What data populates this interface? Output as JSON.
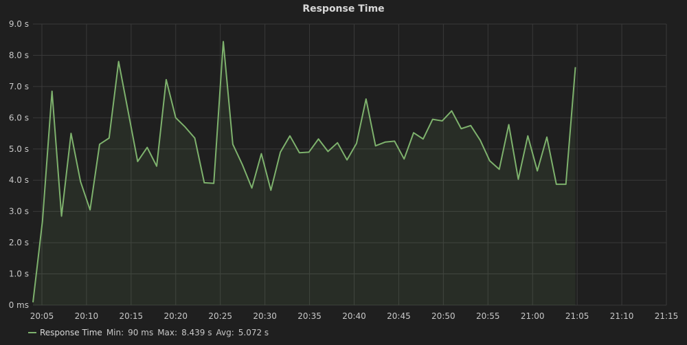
{
  "panel": {
    "title": "Response Time"
  },
  "legend": {
    "name": "Response Time",
    "min_label": "Min:",
    "min_value": "90 ms",
    "max_label": "Max:",
    "max_value": "8.439 s",
    "avg_label": "Avg:",
    "avg_value": "5.072 s"
  },
  "colors": {
    "background": "#1f1f1f",
    "grid": "#3a3a3a",
    "line": "#7eb26d",
    "fill": "#7eb26d",
    "text": "#c8c8c8"
  },
  "chart_data": {
    "type": "area",
    "title": "Response Time",
    "xlabel": "",
    "ylabel": "",
    "x_ticks": [
      "20:05",
      "20:10",
      "20:15",
      "20:20",
      "20:25",
      "20:30",
      "20:35",
      "20:40",
      "20:45",
      "20:50",
      "20:55",
      "21:00",
      "21:05",
      "21:10",
      "21:15"
    ],
    "y_ticks": [
      "0 ms",
      "1.0 s",
      "2.0 s",
      "3.0 s",
      "4.0 s",
      "5.0 s",
      "6.0 s",
      "7.0 s",
      "8.0 s",
      "9.0 s"
    ],
    "ylim": [
      0,
      9
    ],
    "xlim": [
      "20:04:00",
      "21:15:00"
    ],
    "y_unit": "s",
    "grid": true,
    "legend_position": "bottom-left",
    "series": [
      {
        "name": "Response Time",
        "x": [
          "20:04:00",
          "20:05:04",
          "20:06:08",
          "20:07:12",
          "20:08:16",
          "20:09:20",
          "20:10:24",
          "20:11:28",
          "20:12:32",
          "20:13:36",
          "20:14:40",
          "20:15:44",
          "20:16:48",
          "20:17:52",
          "20:18:56",
          "20:20:00",
          "20:21:04",
          "20:22:08",
          "20:23:12",
          "20:24:16",
          "20:25:20",
          "20:26:24",
          "20:27:28",
          "20:28:32",
          "20:29:36",
          "20:30:40",
          "20:31:44",
          "20:32:48",
          "20:33:52",
          "20:34:56",
          "20:36:00",
          "20:37:04",
          "20:38:08",
          "20:39:12",
          "20:40:16",
          "20:41:20",
          "20:42:24",
          "20:43:28",
          "20:44:32",
          "20:45:36",
          "20:46:40",
          "20:47:44",
          "20:48:48",
          "20:49:52",
          "20:50:56",
          "20:52:00",
          "20:53:04",
          "20:54:08",
          "20:55:12",
          "20:56:16",
          "20:57:20",
          "20:58:24",
          "20:59:28",
          "21:00:32",
          "21:01:36",
          "21:02:40",
          "21:03:44",
          "21:04:48"
        ],
        "values": [
          0.09,
          2.7,
          6.85,
          2.85,
          5.5,
          3.95,
          3.05,
          5.15,
          5.35,
          7.8,
          6.2,
          4.6,
          5.05,
          4.45,
          7.22,
          6.0,
          5.7,
          5.35,
          3.92,
          3.9,
          8.44,
          5.15,
          4.5,
          3.75,
          4.85,
          3.68,
          4.9,
          5.42,
          4.88,
          4.9,
          5.32,
          4.92,
          5.2,
          4.65,
          5.18,
          6.6,
          5.1,
          5.22,
          5.25,
          4.68,
          5.52,
          5.32,
          5.95,
          5.9,
          6.22,
          5.65,
          5.75,
          5.28,
          4.62,
          4.35,
          5.78,
          4.03,
          5.42,
          4.3,
          5.38,
          3.87,
          3.87,
          7.62
        ]
      }
    ]
  }
}
